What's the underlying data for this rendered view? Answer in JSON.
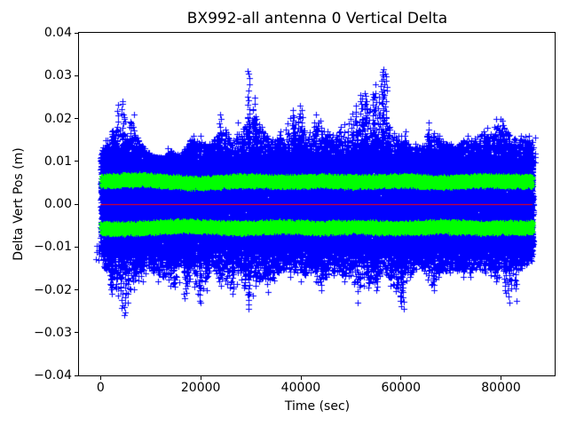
{
  "chart_data": {
    "type": "scatter",
    "title": "BX992-all antenna 0 Vertical Delta",
    "xlabel": "Time (sec)",
    "ylabel": "Delta Vert Pos (m)",
    "xlim": [
      -4320,
      90720
    ],
    "ylim": [
      -0.04,
      0.04
    ],
    "grid": false,
    "legend": "none",
    "background_color": "#ffffff",
    "axis_color": "#000000",
    "xticks": [
      {
        "v": 0,
        "label": "0"
      },
      {
        "v": 20000,
        "label": "20000"
      },
      {
        "v": 40000,
        "label": "40000"
      },
      {
        "v": 60000,
        "label": "60000"
      },
      {
        "v": 80000,
        "label": "80000"
      }
    ],
    "yticks": [
      {
        "v": 0.04,
        "label": "0.04"
      },
      {
        "v": 0.03,
        "label": "0.03"
      },
      {
        "v": 0.02,
        "label": "0.02"
      },
      {
        "v": 0.01,
        "label": "0.01"
      },
      {
        "v": 0.0,
        "label": "0.00"
      },
      {
        "v": -0.01,
        "label": "−0.01"
      },
      {
        "v": -0.02,
        "label": "−0.02"
      },
      {
        "v": -0.03,
        "label": "−0.03"
      },
      {
        "v": -0.04,
        "label": "−0.04"
      }
    ],
    "series": [
      {
        "name": "vertical-delta-scatter",
        "marker": "+",
        "color": "#0000ff",
        "t_start": 0,
        "t_end": 86400,
        "envelope_sample_step_sec": 2000,
        "envelope_upper": [
          0.013,
          0.017,
          0.024,
          0.021,
          0.015,
          0.012,
          0.011,
          0.013,
          0.012,
          0.016,
          0.016,
          0.014,
          0.021,
          0.016,
          0.019,
          0.031,
          0.02,
          0.016,
          0.017,
          0.022,
          0.023,
          0.019,
          0.021,
          0.017,
          0.018,
          0.023,
          0.026,
          0.028,
          0.0315,
          0.018,
          0.017,
          0.014,
          0.014,
          0.019,
          0.016,
          0.014,
          0.015,
          0.016,
          0.017,
          0.018,
          0.02,
          0.017,
          0.016,
          0.016
        ],
        "envelope_lower": [
          -0.013,
          -0.021,
          -0.026,
          -0.023,
          -0.018,
          -0.016,
          -0.018,
          -0.019,
          -0.022,
          -0.019,
          -0.023,
          -0.017,
          -0.019,
          -0.021,
          -0.019,
          -0.0245,
          -0.018,
          -0.0205,
          -0.016,
          -0.017,
          -0.018,
          -0.016,
          -0.02,
          -0.017,
          -0.018,
          -0.018,
          -0.023,
          -0.02,
          -0.018,
          -0.019,
          -0.0245,
          -0.017,
          -0.015,
          -0.02,
          -0.017,
          -0.016,
          -0.017,
          -0.017,
          -0.016,
          -0.018,
          -0.017,
          -0.023,
          -0.015,
          -0.014
        ],
        "dense_core_halfwidth": 0.0095,
        "notable_peaks": [
          {
            "t": 4200,
            "v": 0.024
          },
          {
            "t": 29900,
            "v": 0.031
          },
          {
            "t": 55100,
            "v": 0.0318
          },
          {
            "t": 4100,
            "v": -0.026
          },
          {
            "t": 30000,
            "v": -0.0245
          },
          {
            "t": 60400,
            "v": -0.0243
          },
          {
            "t": 82500,
            "v": -0.023
          }
        ]
      },
      {
        "name": "sigma-band-upper",
        "marker": "+",
        "color": "#00ff00",
        "center_sample_step_sec": 4000,
        "centers": [
          0.0054,
          0.0056,
          0.0058,
          0.0054,
          0.0051,
          0.0049,
          0.0052,
          0.0055,
          0.0054,
          0.0052,
          0.0053,
          0.0055,
          0.0053,
          0.0052,
          0.0054,
          0.0055,
          0.0053,
          0.0051,
          0.0053,
          0.0055,
          0.0054,
          0.0053
        ],
        "halfwidth": 0.0011
      },
      {
        "name": "sigma-band-lower",
        "marker": "+",
        "color": "#00ff00",
        "center_sample_step_sec": 4000,
        "centers": [
          -0.0056,
          -0.0058,
          -0.0056,
          -0.0053,
          -0.0051,
          -0.0052,
          -0.0054,
          -0.0056,
          -0.0054,
          -0.0052,
          -0.0054,
          -0.0056,
          -0.0054,
          -0.0053,
          -0.0055,
          -0.0056,
          -0.0054,
          -0.0052,
          -0.0054,
          -0.0056,
          -0.0055,
          -0.0054
        ],
        "halfwidth": 0.0011
      },
      {
        "name": "zero-line",
        "type": "line",
        "color": "#ff0000",
        "y": 0.0,
        "t_start": 0,
        "t_end": 86400
      }
    ]
  }
}
